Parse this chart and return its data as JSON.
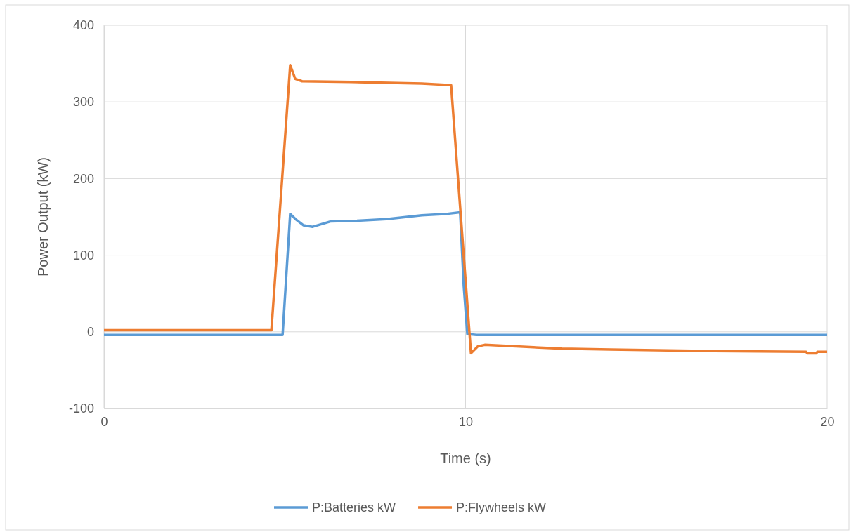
{
  "chart_data": {
    "type": "line",
    "xlabel": "Time (s)",
    "ylabel": "Power Output (kW)",
    "xlim": [
      0,
      20
    ],
    "xticks": [
      0,
      10,
      20
    ],
    "ylim": [
      -100,
      400
    ],
    "yticks": [
      -100,
      0,
      100,
      200,
      300,
      400
    ],
    "grid": true,
    "legend": "bottom",
    "marker": "none",
    "line_style": "solid",
    "series": [
      {
        "name": "P:Batteries kW",
        "color": "#5b9bd5",
        "x": [
          0,
          2,
          4,
          4.94,
          5.15,
          5.3,
          5.52,
          5.77,
          6.26,
          7,
          7.81,
          8.79,
          9.5,
          9.85,
          9.95,
          10.05,
          10.3,
          12,
          14,
          16,
          18,
          20
        ],
        "values": [
          -4,
          -4,
          -4,
          -4,
          154,
          147,
          139,
          137,
          144,
          145,
          147,
          152,
          154,
          156,
          60,
          -3,
          -4,
          -4,
          -4,
          -4,
          -4,
          -4
        ]
      },
      {
        "name": "P:Flywheels kW",
        "color": "#ed7d31",
        "x": [
          0,
          2,
          4.63,
          5.15,
          5.29,
          5.48,
          6.84,
          8.79,
          9.6,
          10.15,
          10.34,
          10.53,
          12.67,
          14,
          16.56,
          19.42,
          19.45,
          19.7,
          19.73,
          20
        ],
        "values": [
          2,
          2,
          2,
          348,
          330,
          327,
          326,
          324,
          322,
          -28,
          -19,
          -17,
          -22,
          -23,
          -25,
          -26,
          -28,
          -28,
          -26,
          -26
        ]
      }
    ]
  }
}
